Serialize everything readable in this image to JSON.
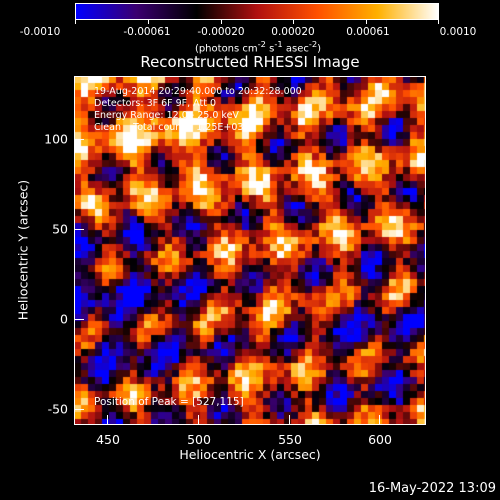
{
  "colorbar": {
    "ticks": [
      "-0.0010",
      "-0.00061",
      "-0.00020",
      "0.00020",
      "0.00061",
      "0.0010"
    ],
    "units_text": "(photons cm",
    "units_sup1": "-2",
    "units_mid1": " s",
    "units_sup2": "-1",
    "units_mid2": " asec",
    "units_sup3": "-2",
    "units_end": ")"
  },
  "title": "Reconstructed RHESSI Image",
  "info": {
    "line1": "19-Aug-2014 20:29:40.000 to 20:32:28.000",
    "line2": "Detectors: 3F 6F 9F, Att 0",
    "line3": "Energy Range: 12.0 - 25.0 keV",
    "line4": "Clean    Total counts: 1.25E+03",
    "peak": "Position of Peak = [527,115]"
  },
  "axes": {
    "xlabel": "Heliocentric X (arcsec)",
    "ylabel": "Heliocentric Y (arcsec)",
    "xticks": [
      "450",
      "500",
      "550",
      "600"
    ],
    "yticks": [
      "100",
      "50",
      "0",
      "-50"
    ]
  },
  "timestamp": "16-May-2022 13:09",
  "chart_data": {
    "type": "heatmap",
    "title": "Reconstructed RHESSI Image",
    "xlabel": "Heliocentric X (arcsec)",
    "ylabel": "Heliocentric Y (arcsec)",
    "xlim": [
      432,
      626
    ],
    "ylim": [
      -58,
      134
    ],
    "colorbar_range": [
      -0.001,
      0.001
    ],
    "colormap": [
      "#0000ff",
      "#3a0070",
      "#000000",
      "#b01010",
      "#ff5000",
      "#ffb000",
      "#ffffff"
    ],
    "peak": [
      527,
      115
    ]
  }
}
